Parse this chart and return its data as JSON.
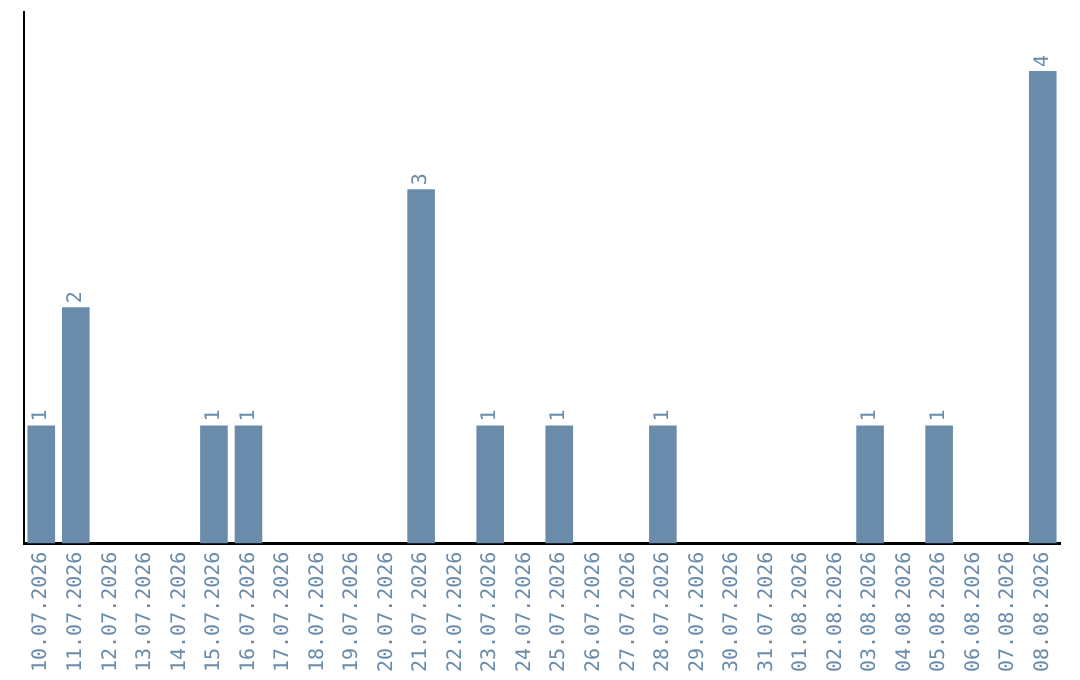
{
  "chart_data": {
    "type": "bar",
    "categories": [
      "10.07.2026",
      "11.07.2026",
      "12.07.2026",
      "13.07.2026",
      "14.07.2026",
      "15.07.2026",
      "16.07.2026",
      "17.07.2026",
      "18.07.2026",
      "19.07.2026",
      "20.07.2026",
      "21.07.2026",
      "22.07.2026",
      "23.07.2026",
      "24.07.2026",
      "25.07.2026",
      "26.07.2026",
      "27.07.2026",
      "28.07.2026",
      "29.07.2026",
      "30.07.2026",
      "31.07.2026",
      "01.08.2026",
      "02.08.2026",
      "03.08.2026",
      "04.08.2026",
      "05.08.2026",
      "06.08.2026",
      "07.08.2026",
      "08.08.2026"
    ],
    "values": [
      1,
      2,
      0,
      0,
      0,
      1,
      1,
      0,
      0,
      0,
      0,
      3,
      0,
      1,
      0,
      1,
      0,
      0,
      1,
      0,
      0,
      0,
      0,
      0,
      1,
      0,
      1,
      0,
      0,
      4
    ],
    "value_labels": [
      "1",
      "2",
      null,
      null,
      null,
      "1",
      "1",
      null,
      null,
      null,
      null,
      "3",
      null,
      "1",
      null,
      "1",
      null,
      null,
      "1",
      null,
      null,
      null,
      null,
      null,
      "1",
      null,
      "1",
      null,
      null,
      "4"
    ],
    "color": "#6a8caa",
    "grid": false,
    "legend": false
  }
}
